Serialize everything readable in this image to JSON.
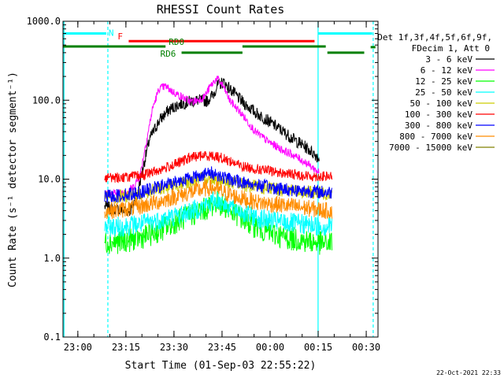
{
  "chart_data": {
    "type": "line",
    "title": "RHESSI Count Rates",
    "xlabel": "Start Time (01-Sep-03 22:55:22)",
    "ylabel": "Count Rate (s⁻¹ detector segment⁻¹)",
    "y_scale": "log",
    "ylim": [
      0.1,
      1000
    ],
    "xlim": [
      "22:55:22",
      "00:33:40"
    ],
    "y_ticks": [
      "0.1",
      "1.0",
      "10.0",
      "100.0",
      "1000.0"
    ],
    "x_ticks": [
      "23:00",
      "23:15",
      "23:30",
      "23:45",
      "00:00",
      "00:15",
      "00:30"
    ],
    "x_tick_minutes": [
      4.63,
      19.63,
      34.63,
      49.63,
      64.63,
      79.63,
      94.63
    ],
    "x_minutes_max": 98.3,
    "legend_header": [
      "Det 1f,3f,4f,5f,6f,9f,",
      "FDecim 1, Att 0"
    ],
    "legend_position": "right",
    "timestamp": "22-Oct-2021 22:33",
    "series": [
      {
        "name": "3 - 6 keV",
        "color": "#000000",
        "x": [
          13,
          16,
          19,
          21,
          23,
          25,
          27,
          30,
          33,
          36,
          39,
          42,
          45,
          47,
          48,
          50,
          52,
          56,
          60,
          64,
          68,
          72,
          76,
          79,
          80
        ],
        "y": [
          4.5,
          4.2,
          4.0,
          4.0,
          6,
          14,
          32,
          55,
          75,
          88,
          95,
          100,
          98,
          120,
          150,
          170,
          140,
          95,
          70,
          55,
          42,
          32,
          25,
          20,
          18
        ]
      },
      {
        "name": "6 - 12 keV",
        "color": "#ff00ff",
        "x": [
          13,
          17,
          20,
          22,
          24,
          26,
          28,
          30,
          32,
          34,
          37,
          40,
          42,
          44,
          46,
          48,
          50,
          52,
          56,
          60,
          64,
          68,
          72,
          76,
          79,
          80
        ],
        "y": [
          6.5,
          6.6,
          7,
          8,
          11,
          30,
          80,
          140,
          150,
          130,
          110,
          95,
          100,
          110,
          150,
          190,
          150,
          100,
          65,
          40,
          30,
          24,
          20,
          16,
          13,
          12
        ]
      },
      {
        "name": "12 - 25 keV",
        "color": "#00ff00",
        "x": [
          13,
          18,
          24,
          30,
          36,
          42,
          46,
          48,
          50,
          54,
          58,
          62,
          66,
          70,
          74,
          78,
          82,
          84
        ],
        "y": [
          1.6,
          1.6,
          1.8,
          2.2,
          3.0,
          3.8,
          4.5,
          5.2,
          4.6,
          3.6,
          2.8,
          2.3,
          2.0,
          1.8,
          1.7,
          1.6,
          1.5,
          1.6
        ]
      },
      {
        "name": "25 - 50 keV",
        "color": "#00ffff",
        "x": [
          13,
          18,
          24,
          30,
          36,
          42,
          46,
          48,
          50,
          54,
          58,
          62,
          66,
          70,
          74,
          78,
          82,
          84
        ],
        "y": [
          2.5,
          2.5,
          2.7,
          3.0,
          3.5,
          4.2,
          5.0,
          5.5,
          5.0,
          4.2,
          3.5,
          3.1,
          2.9,
          2.8,
          2.7,
          2.6,
          2.5,
          2.6
        ]
      },
      {
        "name": "50 - 100 keV",
        "color": "#cccc00",
        "x": [
          13,
          18,
          24,
          30,
          36,
          42,
          46,
          48,
          50,
          54,
          58,
          62,
          66,
          70,
          74,
          78,
          82,
          84
        ],
        "y": [
          6.0,
          6.0,
          6.5,
          7.5,
          8.5,
          10.0,
          10.5,
          10.2,
          9.5,
          8.8,
          8.2,
          7.8,
          7.5,
          7.2,
          7.0,
          6.8,
          6.6,
          6.6
        ]
      },
      {
        "name": "100 - 300 keV",
        "color": "#ff0000",
        "x": [
          13,
          18,
          24,
          30,
          36,
          40,
          44,
          48,
          52,
          56,
          60,
          64,
          68,
          72,
          76,
          80,
          84
        ],
        "y": [
          10.5,
          10.5,
          11.0,
          13.0,
          16.0,
          19.0,
          20.0,
          19.5,
          17.0,
          14.5,
          13.5,
          12.8,
          12.0,
          11.5,
          11.0,
          10.8,
          10.8
        ]
      },
      {
        "name": "300 - 800 keV",
        "color": "#0000ff",
        "x": [
          13,
          18,
          24,
          30,
          36,
          42,
          46,
          48,
          50,
          54,
          58,
          62,
          66,
          70,
          74,
          78,
          82,
          84
        ],
        "y": [
          6.0,
          6.2,
          6.8,
          8.0,
          9.5,
          11.0,
          12.0,
          11.5,
          10.5,
          9.5,
          8.8,
          8.2,
          7.8,
          7.4,
          7.2,
          7.0,
          6.8,
          6.8
        ]
      },
      {
        "name": "800 - 7000 keV",
        "color": "#ff8c00",
        "x": [
          13,
          18,
          24,
          30,
          36,
          42,
          46,
          48,
          50,
          54,
          58,
          62,
          66,
          70,
          74,
          78,
          82,
          84
        ],
        "y": [
          4.0,
          4.1,
          4.5,
          5.2,
          6.2,
          7.2,
          7.8,
          7.5,
          6.8,
          6.0,
          5.4,
          5.0,
          4.8,
          4.6,
          4.4,
          4.2,
          4.0,
          4.0
        ]
      },
      {
        "name": "7000 - 15000 keV",
        "color": "#808000",
        "x": [],
        "y": []
      }
    ],
    "attenuator_bars": [
      {
        "label": "N",
        "color": "#00ffff",
        "y": 700,
        "segments": [
          [
            0,
            13.5
          ],
          [
            79.5,
            96.5
          ]
        ]
      },
      {
        "label": "F",
        "color": "#ff0000",
        "y": 560,
        "segments": [
          [
            20.5,
            78.5
          ]
        ]
      },
      {
        "label": "RD0",
        "color": "#008000",
        "y": 480,
        "segments": [
          [
            0,
            32
          ],
          [
            56,
            82
          ]
        ]
      },
      {
        "label": "RD6",
        "color": "#008000",
        "y": 400,
        "segments": [
          [
            37,
            56
          ],
          [
            82.5,
            94
          ]
        ]
      },
      {
        "label": "",
        "color": "#008000",
        "y": 470,
        "segments": [
          [
            96,
            97.5
          ]
        ]
      }
    ],
    "vertical_markers": [
      {
        "x": 0.3,
        "color": "#00ffff",
        "style": "solid"
      },
      {
        "x": 14.0,
        "color": "#00ffff",
        "style": "dashed"
      },
      {
        "x": 79.6,
        "color": "#00ffff",
        "style": "solid"
      },
      {
        "x": 96.8,
        "color": "#00ffff",
        "style": "dashed"
      }
    ]
  }
}
